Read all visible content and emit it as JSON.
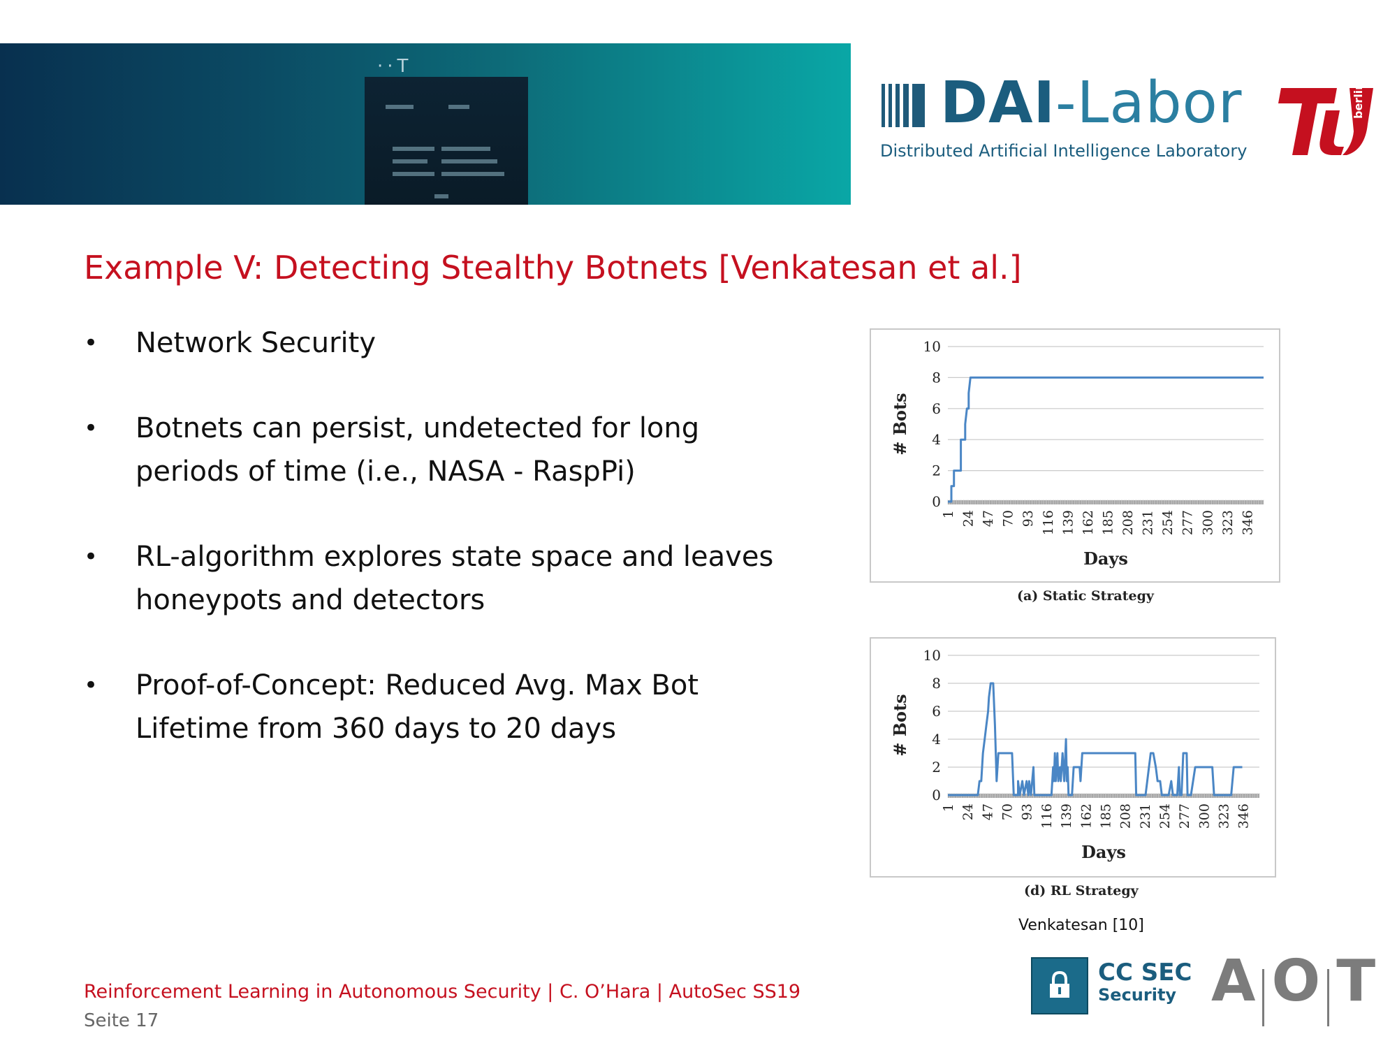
{
  "header": {
    "banner_mark": "··T",
    "dai_logo": {
      "part1": "DAI",
      "part2": "-Labor",
      "subtitle": "Distributed Artificial Intelligence Laboratory"
    },
    "tu_logo_text": "berlin"
  },
  "slide": {
    "title": "Example V: Detecting Stealthy Botnets [Venkatesan et al.]",
    "bullets": [
      "Network Security",
      "Botnets can persist, undetected for long periods of time (i.e., NASA - RaspPi)",
      "RL-algorithm explores state space and leaves honeypots and detectors",
      "Proof-of-Concept: Reduced Avg. Max Bot Lifetime from 360 days to 20 days"
    ],
    "bullet_glyph": "•",
    "source": "Venkatesan [10]"
  },
  "chart_data": [
    {
      "type": "line",
      "caption": "(a) Static Strategy",
      "xlabel": "Days",
      "ylabel": "# Bots",
      "ylim": [
        0,
        10
      ],
      "yticks": [
        0,
        2,
        4,
        6,
        8,
        10
      ],
      "xticks": [
        "1",
        "24",
        "47",
        "70",
        "93",
        "116",
        "139",
        "162",
        "185",
        "208",
        "231",
        "254",
        "277",
        "300",
        "323",
        "346"
      ],
      "xlim": [
        1,
        365
      ],
      "color": "#4a86c5",
      "grid": true,
      "points": [
        [
          1,
          0
        ],
        [
          5,
          0
        ],
        [
          5,
          1
        ],
        [
          8,
          1
        ],
        [
          8,
          2
        ],
        [
          16,
          2
        ],
        [
          16,
          4
        ],
        [
          21,
          4
        ],
        [
          21,
          5
        ],
        [
          23,
          6
        ],
        [
          25,
          6
        ],
        [
          25,
          7
        ],
        [
          27,
          8
        ],
        [
          365,
          8
        ]
      ]
    },
    {
      "type": "line",
      "caption": "(d) RL Strategy",
      "xlabel": "Days",
      "ylabel": "# Bots",
      "ylim": [
        0,
        10
      ],
      "yticks": [
        0,
        2,
        4,
        6,
        8,
        10
      ],
      "xticks": [
        "1",
        "24",
        "47",
        "70",
        "93",
        "116",
        "139",
        "162",
        "185",
        "208",
        "231",
        "254",
        "277",
        "300",
        "323",
        "346"
      ],
      "xlim": [
        1,
        365
      ],
      "color": "#4a86c5",
      "grid": true,
      "points": [
        [
          1,
          0
        ],
        [
          36,
          0
        ],
        [
          38,
          1
        ],
        [
          40,
          1
        ],
        [
          42,
          3
        ],
        [
          44,
          4
        ],
        [
          46,
          5
        ],
        [
          48,
          6
        ],
        [
          49,
          7
        ],
        [
          51,
          8
        ],
        [
          54,
          8
        ],
        [
          56,
          5
        ],
        [
          58,
          1
        ],
        [
          60,
          3
        ],
        [
          76,
          3
        ],
        [
          78,
          0
        ],
        [
          83,
          0
        ],
        [
          83,
          1
        ],
        [
          85,
          0
        ],
        [
          88,
          1
        ],
        [
          90,
          0
        ],
        [
          93,
          1
        ],
        [
          95,
          0
        ],
        [
          96,
          1
        ],
        [
          98,
          0
        ],
        [
          101,
          2
        ],
        [
          102,
          0
        ],
        [
          122,
          0
        ],
        [
          123,
          1
        ],
        [
          124,
          2
        ],
        [
          125,
          1
        ],
        [
          126,
          3
        ],
        [
          127,
          1
        ],
        [
          129,
          3
        ],
        [
          130,
          1
        ],
        [
          132,
          2
        ],
        [
          133,
          1
        ],
        [
          135,
          3
        ],
        [
          137,
          1
        ],
        [
          139,
          4
        ],
        [
          140,
          1
        ],
        [
          141,
          2
        ],
        [
          142,
          0
        ],
        [
          146,
          0
        ],
        [
          148,
          2
        ],
        [
          155,
          2
        ],
        [
          156,
          1
        ],
        [
          158,
          3
        ],
        [
          220,
          3
        ],
        [
          221,
          0
        ],
        [
          232,
          0
        ],
        [
          236,
          2
        ],
        [
          238,
          3
        ],
        [
          241,
          3
        ],
        [
          244,
          2
        ],
        [
          246,
          1
        ],
        [
          249,
          1
        ],
        [
          251,
          0
        ],
        [
          259,
          0
        ],
        [
          262,
          1
        ],
        [
          264,
          0
        ],
        [
          269,
          0
        ],
        [
          271,
          2
        ],
        [
          272,
          0
        ],
        [
          274,
          0
        ],
        [
          276,
          3
        ],
        [
          280,
          3
        ],
        [
          281,
          0
        ],
        [
          285,
          0
        ],
        [
          290,
          2
        ],
        [
          310,
          2
        ],
        [
          312,
          0
        ],
        [
          332,
          0
        ],
        [
          335,
          2
        ],
        [
          345,
          2
        ]
      ]
    }
  ],
  "footer": {
    "text": "Reinforcement Learning in Autonomous Security | C. O’Hara | AutoSec SS19",
    "page": "Seite 17",
    "ccsec_line1": "CC SEC",
    "ccsec_line2": "Security",
    "aot_letters": [
      "A",
      "O",
      "T"
    ]
  }
}
